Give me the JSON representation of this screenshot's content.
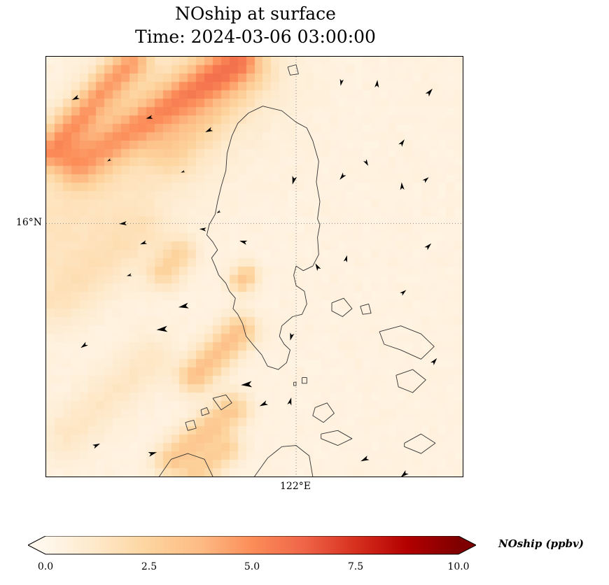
{
  "title": {
    "line1": "NOship at surface",
    "line2": "Time: 2024-03-06 03:00:00"
  },
  "map": {
    "ytick_label": "16°N",
    "xtick_label": "122°E"
  },
  "colorbar": {
    "label": "NOship (ppbv)",
    "ticks": [
      "0.0",
      "2.5",
      "5.0",
      "7.5",
      "10.0"
    ],
    "min": 0,
    "max": 10,
    "extend": "both"
  },
  "chart_data": {
    "type": "heatmap",
    "title": "NOship at surface",
    "subtitle": "Time: 2024-03-06 03:00:00",
    "variable": "NOship",
    "units": "ppbv",
    "extent": {
      "lon_min": 119.9,
      "lon_max": 123.4,
      "lat_min": 13.8,
      "lat_max": 17.45
    },
    "gridlines": {
      "lon": [
        122
      ],
      "lat": [
        16
      ]
    },
    "grid_resolution": 50,
    "scale": {
      "min": 0,
      "max": 10
    },
    "colormap_stops": [
      [
        0.0,
        "#fff7ec"
      ],
      [
        0.125,
        "#fee8c8"
      ],
      [
        0.25,
        "#fdd49e"
      ],
      [
        0.375,
        "#fdbb84"
      ],
      [
        0.5,
        "#fc8d59"
      ],
      [
        0.625,
        "#ef6548"
      ],
      [
        0.75,
        "#d7301f"
      ],
      [
        0.875,
        "#b30000"
      ],
      [
        1.0,
        "#7f0000"
      ]
    ],
    "base_value": 0.45,
    "plumes": [
      {
        "from": [
          120.17,
          16.51
        ],
        "to": [
          121.49,
          17.42
        ],
        "peak": 3.4,
        "sigma": 0.13
      },
      {
        "from": [
          119.92,
          16.63
        ],
        "to": [
          120.61,
          17.4
        ],
        "peak": 3.8,
        "sigma": 0.11
      },
      {
        "from": [
          119.9,
          15.92
        ],
        "to": [
          121.3,
          17.27
        ],
        "peak": 1.1,
        "sigma": 0.38
      },
      {
        "from": [
          120.89,
          15.58
        ],
        "to": [
          121.02,
          15.73
        ],
        "peak": 2.0,
        "sigma": 0.1
      },
      {
        "from": [
          121.16,
          14.68
        ],
        "to": [
          121.52,
          15.06
        ],
        "peak": 3.0,
        "sigma": 0.1
      },
      {
        "from": [
          121.54,
          15.5
        ],
        "to": [
          121.58,
          15.54
        ],
        "peak": 2.6,
        "sigma": 0.07
      },
      {
        "from": [
          120.96,
          13.95
        ],
        "to": [
          121.46,
          14.38
        ],
        "peak": 2.6,
        "sigma": 0.1
      },
      {
        "from": [
          121.16,
          13.82
        ],
        "to": [
          121.41,
          14.04
        ],
        "peak": 2.1,
        "sigma": 0.09
      },
      {
        "from": [
          119.99,
          15.32
        ],
        "to": [
          120.69,
          15.93
        ],
        "peak": 0.9,
        "sigma": 0.16
      },
      {
        "from": [
          120.08,
          14.17
        ],
        "to": [
          120.78,
          14.82
        ],
        "peak": 0.9,
        "sigma": 0.14
      },
      {
        "from": [
          120.95,
          16.65
        ],
        "to": [
          121.58,
          17.34
        ],
        "peak": 1.5,
        "sigma": 0.16
      }
    ],
    "arrows": [
      {
        "lon": 120.15,
        "lat": 17.09,
        "angle": 205,
        "scale": 0.9
      },
      {
        "lon": 120.77,
        "lat": 16.92,
        "angle": 195,
        "scale": 0.8
      },
      {
        "lon": 121.27,
        "lat": 16.81,
        "angle": 205,
        "scale": 0.9
      },
      {
        "lon": 121.98,
        "lat": 16.38,
        "angle": 255,
        "scale": 1.0
      },
      {
        "lon": 122.39,
        "lat": 16.41,
        "angle": 230,
        "scale": 0.9
      },
      {
        "lon": 122.59,
        "lat": 16.53,
        "angle": 300,
        "scale": 0.8
      },
      {
        "lon": 122.89,
        "lat": 16.7,
        "angle": 55,
        "scale": 0.9
      },
      {
        "lon": 123.12,
        "lat": 17.14,
        "angle": 50,
        "scale": 1.0
      },
      {
        "lon": 122.68,
        "lat": 17.21,
        "angle": 85,
        "scale": 0.9
      },
      {
        "lon": 122.38,
        "lat": 17.23,
        "angle": 260,
        "scale": 0.8
      },
      {
        "lon": 122.89,
        "lat": 16.32,
        "angle": 95,
        "scale": 0.9
      },
      {
        "lon": 123.09,
        "lat": 16.38,
        "angle": 40,
        "scale": 0.8
      },
      {
        "lon": 120.55,
        "lat": 16.0,
        "angle": 185,
        "scale": 0.9
      },
      {
        "lon": 120.72,
        "lat": 15.83,
        "angle": 200,
        "scale": 0.8
      },
      {
        "lon": 121.22,
        "lat": 15.95,
        "angle": 175,
        "scale": 0.8
      },
      {
        "lon": 121.56,
        "lat": 15.84,
        "angle": 165,
        "scale": 0.9
      },
      {
        "lon": 122.18,
        "lat": 15.62,
        "angle": 120,
        "scale": 0.9
      },
      {
        "lon": 122.42,
        "lat": 15.69,
        "angle": 75,
        "scale": 0.8
      },
      {
        "lon": 123.11,
        "lat": 15.8,
        "angle": 45,
        "scale": 0.9
      },
      {
        "lon": 122.9,
        "lat": 15.4,
        "angle": 40,
        "scale": 0.8
      },
      {
        "lon": 120.22,
        "lat": 14.94,
        "angle": 215,
        "scale": 0.9
      },
      {
        "lon": 120.88,
        "lat": 15.08,
        "angle": 185,
        "scale": 1.3
      },
      {
        "lon": 121.06,
        "lat": 15.28,
        "angle": 190,
        "scale": 1.2
      },
      {
        "lon": 121.96,
        "lat": 15.02,
        "angle": 255,
        "scale": 0.9
      },
      {
        "lon": 121.59,
        "lat": 14.6,
        "angle": 185,
        "scale": 1.3
      },
      {
        "lon": 121.73,
        "lat": 14.43,
        "angle": 205,
        "scale": 1.0
      },
      {
        "lon": 121.95,
        "lat": 14.45,
        "angle": 75,
        "scale": 0.9
      },
      {
        "lon": 120.32,
        "lat": 14.07,
        "angle": 25,
        "scale": 0.9
      },
      {
        "lon": 120.79,
        "lat": 14.0,
        "angle": 15,
        "scale": 1.0
      },
      {
        "lon": 122.58,
        "lat": 13.95,
        "angle": 205,
        "scale": 1.0
      },
      {
        "lon": 122.91,
        "lat": 13.82,
        "angle": 220,
        "scale": 1.0
      },
      {
        "lon": 123.16,
        "lat": 14.8,
        "angle": 50,
        "scale": 0.9
      },
      {
        "lon": 120.43,
        "lat": 16.55,
        "angle": 210,
        "scale": 0.5
      },
      {
        "lon": 121.05,
        "lat": 16.45,
        "angle": 200,
        "scale": 0.5
      },
      {
        "lon": 120.6,
        "lat": 15.55,
        "angle": 195,
        "scale": 0.6
      },
      {
        "lon": 121.35,
        "lat": 16.1,
        "angle": 210,
        "scale": 0.5
      }
    ],
    "coastlines": [
      [
        [
          121.6,
          16.96
        ],
        [
          121.72,
          17.02
        ],
        [
          121.88,
          16.98
        ],
        [
          122.0,
          16.88
        ],
        [
          122.09,
          16.83
        ],
        [
          122.14,
          16.72
        ],
        [
          122.19,
          16.54
        ],
        [
          122.17,
          16.36
        ],
        [
          122.2,
          16.19
        ],
        [
          122.18,
          16.04
        ],
        [
          122.2,
          15.99
        ],
        [
          122.18,
          15.88
        ],
        [
          122.19,
          15.73
        ],
        [
          122.14,
          15.63
        ],
        [
          122.06,
          15.59
        ],
        [
          122.0,
          15.63
        ],
        [
          121.98,
          15.55
        ],
        [
          122.0,
          15.46
        ],
        [
          122.07,
          15.41
        ],
        [
          122.09,
          15.3
        ],
        [
          122.05,
          15.21
        ],
        [
          121.97,
          15.19
        ],
        [
          121.88,
          15.11
        ],
        [
          121.86,
          15.02
        ],
        [
          121.9,
          14.95
        ],
        [
          121.95,
          14.9
        ],
        [
          121.92,
          14.79
        ],
        [
          121.85,
          14.73
        ],
        [
          121.76,
          14.76
        ],
        [
          121.71,
          14.86
        ],
        [
          121.65,
          14.93
        ],
        [
          121.58,
          15.02
        ],
        [
          121.55,
          15.13
        ],
        [
          121.51,
          15.21
        ],
        [
          121.47,
          15.26
        ],
        [
          121.49,
          15.35
        ],
        [
          121.44,
          15.41
        ],
        [
          121.41,
          15.48
        ],
        [
          121.35,
          15.55
        ],
        [
          121.32,
          15.63
        ],
        [
          121.29,
          15.7
        ],
        [
          121.34,
          15.77
        ],
        [
          121.3,
          15.84
        ],
        [
          121.25,
          15.9
        ],
        [
          121.27,
          15.99
        ],
        [
          121.32,
          16.08
        ],
        [
          121.34,
          16.19
        ],
        [
          121.37,
          16.32
        ],
        [
          121.41,
          16.46
        ],
        [
          121.42,
          16.61
        ],
        [
          121.46,
          16.76
        ],
        [
          121.51,
          16.87
        ],
        [
          121.6,
          16.96
        ]
      ],
      [
        [
          122.3,
          15.31
        ],
        [
          122.4,
          15.35
        ],
        [
          122.47,
          15.26
        ],
        [
          122.39,
          15.19
        ],
        [
          122.3,
          15.24
        ],
        [
          122.3,
          15.31
        ]
      ],
      [
        [
          122.54,
          15.28
        ],
        [
          122.61,
          15.3
        ],
        [
          122.63,
          15.22
        ],
        [
          122.56,
          15.21
        ],
        [
          122.54,
          15.28
        ]
      ],
      [
        [
          122.7,
          15.06
        ],
        [
          122.88,
          15.11
        ],
        [
          123.05,
          15.04
        ],
        [
          123.16,
          14.93
        ],
        [
          123.05,
          14.82
        ],
        [
          122.88,
          14.9
        ],
        [
          122.74,
          14.95
        ],
        [
          122.7,
          15.06
        ]
      ],
      [
        [
          122.84,
          14.68
        ],
        [
          122.98,
          14.73
        ],
        [
          123.09,
          14.64
        ],
        [
          122.98,
          14.53
        ],
        [
          122.86,
          14.58
        ],
        [
          122.84,
          14.68
        ]
      ],
      [
        [
          122.16,
          14.4
        ],
        [
          122.26,
          14.44
        ],
        [
          122.32,
          14.35
        ],
        [
          122.23,
          14.27
        ],
        [
          122.14,
          14.33
        ],
        [
          122.16,
          14.4
        ]
      ],
      [
        [
          121.65,
          13.8
        ],
        [
          121.76,
          13.96
        ],
        [
          121.88,
          14.06
        ],
        [
          122.0,
          14.07
        ],
        [
          122.11,
          13.98
        ],
        [
          122.14,
          13.8
        ]
      ],
      [
        [
          121.3,
          14.48
        ],
        [
          121.41,
          14.51
        ],
        [
          121.46,
          14.44
        ],
        [
          121.37,
          14.38
        ],
        [
          121.3,
          14.48
        ]
      ],
      [
        [
          121.2,
          14.38
        ],
        [
          121.25,
          14.4
        ],
        [
          121.27,
          14.35
        ],
        [
          121.21,
          14.33
        ],
        [
          121.2,
          14.38
        ]
      ],
      [
        [
          122.21,
          14.17
        ],
        [
          122.35,
          14.2
        ],
        [
          122.47,
          14.13
        ],
        [
          122.35,
          14.07
        ],
        [
          122.21,
          14.13
        ],
        [
          122.21,
          14.17
        ]
      ],
      [
        [
          122.91,
          14.09
        ],
        [
          123.05,
          14.17
        ],
        [
          123.17,
          14.09
        ],
        [
          123.05,
          14.0
        ],
        [
          122.91,
          14.06
        ],
        [
          122.91,
          14.09
        ]
      ],
      [
        [
          120.85,
          13.8
        ],
        [
          120.95,
          13.95
        ],
        [
          121.09,
          14.0
        ],
        [
          121.23,
          13.95
        ],
        [
          121.3,
          13.8
        ]
      ],
      [
        [
          121.07,
          14.27
        ],
        [
          121.14,
          14.29
        ],
        [
          121.16,
          14.22
        ],
        [
          121.09,
          14.2
        ],
        [
          121.07,
          14.27
        ]
      ],
      [
        [
          121.93,
          17.36
        ],
        [
          122.0,
          17.38
        ],
        [
          122.02,
          17.3
        ],
        [
          121.95,
          17.29
        ],
        [
          121.93,
          17.36
        ]
      ],
      [
        [
          122.05,
          14.66
        ],
        [
          122.09,
          14.66
        ],
        [
          122.09,
          14.61
        ],
        [
          122.05,
          14.61
        ],
        [
          122.05,
          14.66
        ]
      ],
      [
        [
          121.98,
          14.62
        ],
        [
          122.0,
          14.62
        ],
        [
          122.0,
          14.59
        ],
        [
          121.98,
          14.59
        ],
        [
          121.98,
          14.62
        ]
      ]
    ]
  }
}
